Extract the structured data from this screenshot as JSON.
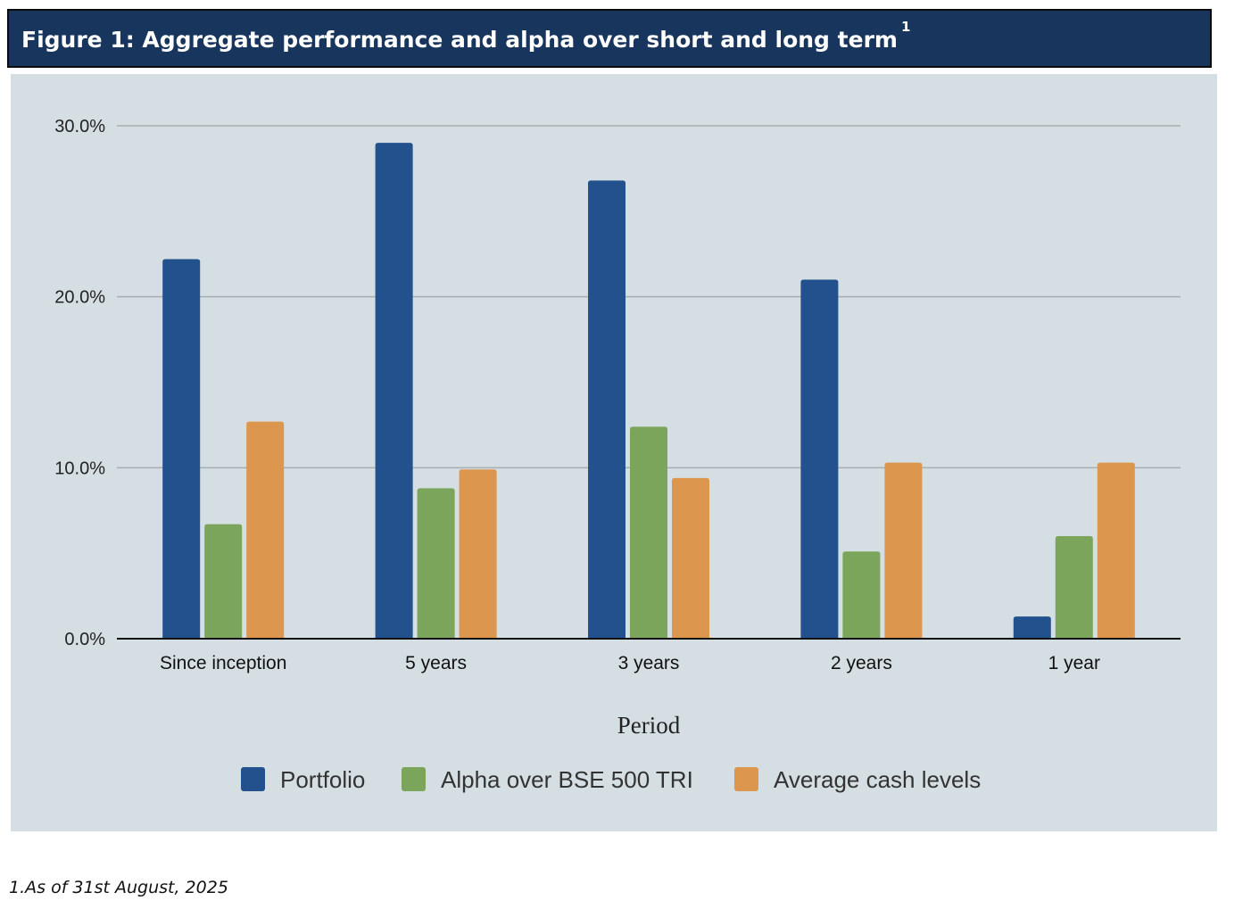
{
  "header": {
    "title": "Figure 1:  Aggregate performance and alpha over short and long term",
    "superscript": "1"
  },
  "footnote": "1.As of 31st August, 2025",
  "colors": {
    "header_bg": "#17355d",
    "panel_bg": "#d5dfe3",
    "gridline": "#a7adb0",
    "axis": "#111111"
  },
  "chart_data": {
    "type": "bar",
    "title": "",
    "xlabel": "Period",
    "ylabel": "",
    "ylim": [
      0,
      30
    ],
    "yticks": [
      0,
      10,
      20,
      30
    ],
    "ytick_labels": [
      "0.0%",
      "10.0%",
      "20.0%",
      "30.0%"
    ],
    "grid": true,
    "legend_position": "bottom",
    "categories": [
      "Since inception",
      "5 years",
      "3 years",
      "2 years",
      "1 year"
    ],
    "series": [
      {
        "name": "Portfolio",
        "color": "#22518e",
        "values": [
          22.2,
          29.0,
          26.8,
          21.0,
          1.3
        ]
      },
      {
        "name": "Alpha over BSE 500 TRI",
        "color": "#7aa55a",
        "values": [
          6.7,
          8.8,
          12.4,
          5.1,
          6.0
        ]
      },
      {
        "name": "Average cash levels",
        "color": "#dc964d",
        "values": [
          12.7,
          9.9,
          9.4,
          10.3,
          10.3
        ]
      }
    ]
  }
}
